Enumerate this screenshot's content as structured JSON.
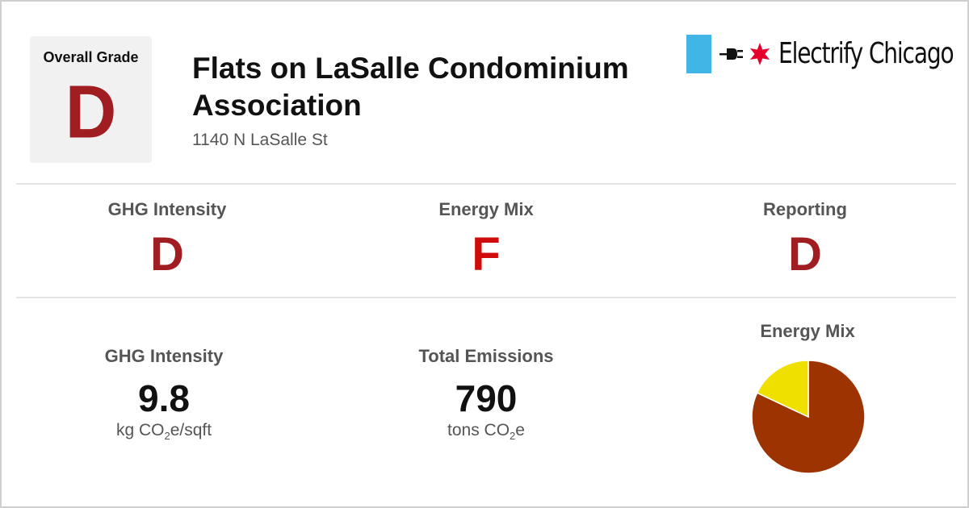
{
  "overall": {
    "label": "Overall Grade",
    "grade": "D"
  },
  "building": {
    "name": "Flats on LaSalle Condominium Association",
    "address": "1140 N LaSalle St"
  },
  "brand": {
    "name": "Electrify Chicago"
  },
  "grades": [
    {
      "label": "GHG Intensity",
      "grade": "D",
      "color": "#a01d22"
    },
    {
      "label": "Energy Mix",
      "grade": "F",
      "color": "#d00b0b"
    },
    {
      "label": "Reporting",
      "grade": "D",
      "color": "#a01d22"
    }
  ],
  "metrics": [
    {
      "label": "GHG Intensity",
      "value": "9.8",
      "unit_pre": "kg CO",
      "unit_sub": "2",
      "unit_post": "e/sqft"
    },
    {
      "label": "Total Emissions",
      "value": "790",
      "unit_pre": "tons CO",
      "unit_sub": "2",
      "unit_post": "e"
    }
  ],
  "energy_mix": {
    "title": "Energy Mix",
    "chart_data": {
      "type": "pie",
      "slices": [
        {
          "value": 0.82,
          "color": "#9c3300"
        },
        {
          "value": 0.18,
          "color": "#f0e000"
        }
      ],
      "start_angle_deg": -90
    }
  },
  "colors": {
    "grade_d": "#a01d22",
    "grade_f": "#d00b0b",
    "brand_blue": "#41b6e6",
    "star_red": "#e4002b"
  }
}
